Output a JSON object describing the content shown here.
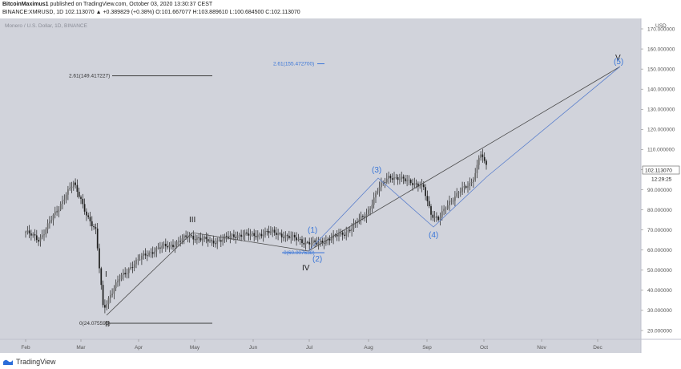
{
  "header": {
    "author": "BitcoinMaximus1",
    "published": "published on TradingView.com, October 03, 2020 13:30:37 CEST",
    "ohlc": "BINANCE:XMRUSD, 1D 102.113070 ▲ +0.389829 (+0.38%) O:101.667077 H:103.889610 L:100.684500 C:102.113070"
  },
  "footer": {
    "brand": "TradingView",
    "logo": "tradingview-logo-icon"
  },
  "colors": {
    "background": "#d1d3db",
    "candle": "#1f1f1f",
    "blue": "#3a76d8",
    "line": "#3c3c3c",
    "price_box": "#ffffff"
  },
  "chart_data": {
    "type": "line",
    "title": "Monero / U.S. Dollar, 1D, BINANCE",
    "currency": "USD",
    "ylim": [
      20,
      170
    ],
    "y_ticks": [
      "20.000000",
      "30.000000",
      "40.000000",
      "50.000000",
      "60.000000",
      "70.000000",
      "80.000000",
      "90.000000",
      "100.000000",
      "110.000000",
      "120.000000",
      "130.000000",
      "140.000000",
      "150.000000",
      "160.000000",
      "170.000000"
    ],
    "x_ticks": [
      "Feb",
      "Mar",
      "Apr",
      "May",
      "Jun",
      "Jul",
      "Aug",
      "Sep",
      "Oct",
      "Nov",
      "Dec"
    ],
    "last_price": "102.113070",
    "countdown": "12:29:25",
    "series": [
      {
        "values": [
          [
            "Feb 01",
            69
          ],
          [
            "Feb 08",
            65
          ],
          [
            "Feb 13",
            73
          ],
          [
            "Feb 18",
            80
          ],
          [
            "Feb 22",
            88
          ],
          [
            "Feb 26",
            93
          ],
          [
            "Mar 01",
            85
          ],
          [
            "Mar 05",
            76
          ],
          [
            "Mar 09",
            69
          ],
          [
            "Mar 12",
            41
          ],
          [
            "Mar 13",
            31
          ],
          [
            "Mar 17",
            38
          ],
          [
            "Mar 22",
            46
          ],
          [
            "Mar 28",
            52
          ],
          [
            "Apr 05",
            58
          ],
          [
            "Apr 12",
            61
          ],
          [
            "Apr 20",
            63
          ],
          [
            "Apr 28",
            67
          ],
          [
            "May 03",
            66
          ],
          [
            "May 10",
            64
          ],
          [
            "May 18",
            66
          ],
          [
            "May 26",
            68
          ],
          [
            "Jun 01",
            67
          ],
          [
            "Jun 08",
            69
          ],
          [
            "Jun 15",
            68
          ],
          [
            "Jun 22",
            66
          ],
          [
            "Jun 29",
            64
          ],
          [
            "Jul 05",
            63
          ],
          [
            "Jul 12",
            66
          ],
          [
            "Jul 19",
            68
          ],
          [
            "Jul 25",
            73
          ],
          [
            "Jul 31",
            78
          ],
          [
            "Aug 06",
            90
          ],
          [
            "Aug 12",
            97
          ],
          [
            "Aug 18",
            95
          ],
          [
            "Aug 24",
            94
          ],
          [
            "Aug 30",
            91
          ],
          [
            "Sep 03",
            78
          ],
          [
            "Sep 07",
            76
          ],
          [
            "Sep 12",
            82
          ],
          [
            "Sep 18",
            90
          ],
          [
            "Sep 24",
            92
          ],
          [
            "Sep 27",
            100
          ],
          [
            "Sep 29",
            110
          ],
          [
            "Oct 01",
            104
          ],
          [
            "Oct 03",
            102
          ]
        ]
      }
    ],
    "annotations": [
      {
        "label": "2.61(149.417227)",
        "value": 149.417227,
        "color": "black"
      },
      {
        "label": "2.61(155.472700)",
        "value": 155.4727,
        "color": "blue"
      },
      {
        "label": "0(24.075595)",
        "value": 24.075595,
        "color": "black"
      },
      {
        "label": "0(60.007638)",
        "value": 60.007638,
        "color": "blue"
      }
    ],
    "waves": [
      {
        "label": "I",
        "style": "black"
      },
      {
        "label": "II",
        "style": "black"
      },
      {
        "label": "III",
        "style": "black"
      },
      {
        "label": "IV",
        "style": "black"
      },
      {
        "label": "V",
        "style": "black"
      },
      {
        "label": "(1)",
        "style": "blue"
      },
      {
        "label": "(2)",
        "style": "blue"
      },
      {
        "label": "(3)",
        "style": "blue"
      },
      {
        "label": "(4)",
        "style": "blue"
      },
      {
        "label": "(5)",
        "style": "blue"
      }
    ]
  }
}
